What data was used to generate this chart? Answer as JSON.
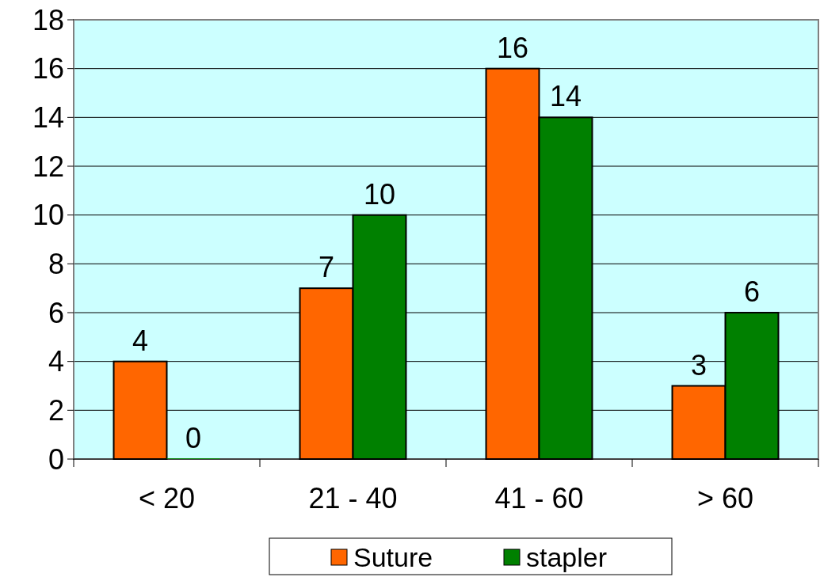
{
  "chart_data": {
    "type": "bar",
    "categories": [
      "< 20",
      "21 - 40",
      "41 - 60",
      "> 60"
    ],
    "series": [
      {
        "name": "Suture",
        "color": "#ff6600",
        "values": [
          4,
          7,
          16,
          3
        ]
      },
      {
        "name": "stapler",
        "color": "#008000",
        "values": [
          0,
          10,
          14,
          6
        ]
      }
    ],
    "ylim": [
      0,
      18
    ],
    "yticks": [
      0,
      2,
      4,
      6,
      8,
      10,
      12,
      14,
      16,
      18
    ],
    "grid": "y",
    "legend": "bottom",
    "data_labels": true
  }
}
